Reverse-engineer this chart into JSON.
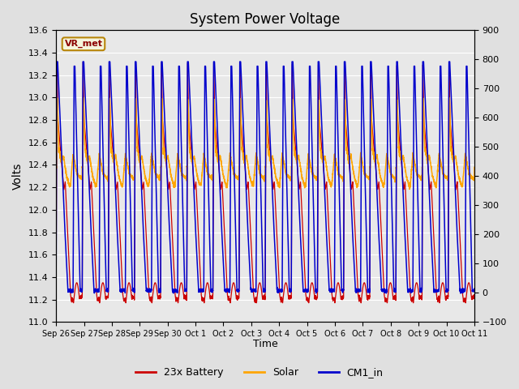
{
  "title": "System Power Voltage",
  "xlabel": "Time",
  "ylabel_left": "Volts",
  "ylim_left": [
    11.0,
    13.6
  ],
  "ylim_right": [
    -100,
    900
  ],
  "yticks_left": [
    11.0,
    11.2,
    11.4,
    11.6,
    11.8,
    12.0,
    12.2,
    12.4,
    12.6,
    12.8,
    13.0,
    13.2,
    13.4,
    13.6
  ],
  "yticks_right": [
    -100,
    0,
    100,
    200,
    300,
    400,
    500,
    600,
    700,
    800,
    900
  ],
  "x_tick_labels": [
    "Sep 26",
    "Sep 27",
    "Sep 28",
    "Sep 29",
    "Sep 30",
    "Oct 1",
    "Oct 2",
    "Oct 3",
    "Oct 4",
    "Oct 5",
    "Oct 6",
    "Oct 7",
    "Oct 8",
    "Oct 9",
    "Oct 10",
    "Oct 11"
  ],
  "annotation_text": "VR_met",
  "bg_color": "#e0e0e0",
  "plot_bg_color": "#e8e8e8",
  "grid_color": "#ffffff",
  "line_battery_color": "#cc0000",
  "line_solar_color": "#ffa500",
  "line_cm1_color": "#0000cc",
  "legend_labels": [
    "23x Battery",
    "Solar",
    "CM1_in"
  ],
  "n_cycles": 16
}
